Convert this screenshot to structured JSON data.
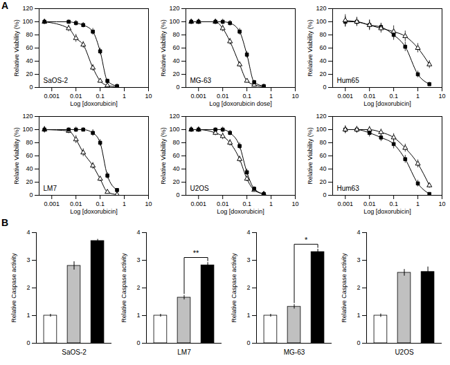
{
  "chart_data": [
    {
      "type": "line",
      "xlabel": "Log [doxorubicin]",
      "ylabel": "Relative Viability (%)",
      "log": "x",
      "xlim": [
        0.0003,
        10
      ],
      "xticks": [
        0.001,
        0.01,
        0.1,
        1,
        10
      ],
      "ylim": [
        0,
        120
      ],
      "yticks": [
        0,
        20,
        40,
        60,
        80,
        100,
        120
      ],
      "grid": false,
      "annotations": [
        "A",
        {
          "text": "SaOS-2"
        }
      ],
      "series": [
        {
          "color": "black",
          "marker": "triangle-open",
          "x": [
            0.0005,
            0.005,
            0.01,
            0.02,
            0.05,
            0.1,
            0.2,
            0.5
          ],
          "values": [
            100,
            90,
            75,
            65,
            30,
            10,
            3,
            1
          ],
          "errors": [
            4,
            5,
            6,
            5,
            5,
            3,
            2,
            1
          ]
        },
        {
          "color": "black",
          "marker": "square",
          "x": [
            0.0005,
            0.005,
            0.01,
            0.02,
            0.05,
            0.1,
            0.2,
            0.5
          ],
          "values": [
            100,
            100,
            98,
            95,
            85,
            55,
            10,
            2
          ],
          "errors": [
            3,
            3,
            4,
            4,
            5,
            5,
            3,
            1
          ]
        }
      ]
    },
    {
      "type": "line",
      "xlabel": "Log [doxorubicin dose]",
      "ylabel": "Relative Viability (%)",
      "log": "x",
      "xlim": [
        0.0003,
        10
      ],
      "xticks": [
        0.001,
        0.01,
        0.1,
        1,
        10
      ],
      "ylim": [
        0,
        120
      ],
      "yticks": [
        0,
        20,
        40,
        60,
        80,
        100,
        120
      ],
      "grid": false,
      "annotations": [
        {
          "text": "MG-63"
        }
      ],
      "series": [
        {
          "color": "black",
          "marker": "triangle-open",
          "x": [
            0.0005,
            0.001,
            0.005,
            0.01,
            0.02,
            0.05,
            0.1,
            0.2,
            0.5
          ],
          "values": [
            100,
            100,
            100,
            90,
            70,
            35,
            10,
            4,
            1
          ],
          "errors": [
            4,
            4,
            4,
            5,
            5,
            4,
            3,
            2,
            1
          ]
        },
        {
          "color": "black",
          "marker": "square",
          "x": [
            0.0005,
            0.001,
            0.005,
            0.01,
            0.02,
            0.05,
            0.1,
            0.2,
            0.5
          ],
          "values": [
            100,
            100,
            100,
            100,
            98,
            85,
            50,
            8,
            2
          ],
          "errors": [
            3,
            3,
            3,
            4,
            4,
            5,
            5,
            3,
            1
          ]
        }
      ]
    },
    {
      "type": "line",
      "xlabel": "Log [doxorubicin]",
      "ylabel": "Relative Viability (%)",
      "log": "x",
      "xlim": [
        0.0003,
        10
      ],
      "xticks": [
        0.001,
        0.01,
        0.1,
        1,
        10
      ],
      "ylim": [
        0,
        120
      ],
      "yticks": [
        0,
        20,
        40,
        60,
        80,
        100,
        120
      ],
      "grid": false,
      "annotations": [
        {
          "text": "Hum65"
        }
      ],
      "series": [
        {
          "color": "black",
          "marker": "square",
          "x": [
            0.001,
            0.003,
            0.01,
            0.03,
            0.1,
            0.3,
            1,
            3
          ],
          "values": [
            100,
            100,
            95,
            92,
            80,
            62,
            20,
            5
          ],
          "errors": [
            8,
            6,
            7,
            6,
            8,
            7,
            5,
            3
          ]
        },
        {
          "color": "black",
          "marker": "triangle-open",
          "x": [
            0.001,
            0.003,
            0.01,
            0.03,
            0.1,
            0.3,
            1,
            3
          ],
          "values": [
            102,
            100,
            95,
            90,
            85,
            78,
            60,
            35
          ],
          "errors": [
            9,
            7,
            8,
            7,
            9,
            8,
            7,
            6
          ]
        }
      ]
    },
    {
      "type": "line",
      "xlabel": "Log [doxorubicin]",
      "ylabel": "Relative Viability (%)",
      "log": "x",
      "xlim": [
        0.0003,
        10
      ],
      "xticks": [
        0.001,
        0.01,
        0.1,
        1,
        10
      ],
      "ylim": [
        0,
        120
      ],
      "yticks": [
        0,
        20,
        40,
        60,
        80,
        100,
        120
      ],
      "grid": false,
      "annotations": [
        {
          "text": "LM7"
        }
      ],
      "series": [
        {
          "color": "black",
          "marker": "triangle-open",
          "x": [
            0.0005,
            0.005,
            0.01,
            0.02,
            0.05,
            0.1,
            0.2,
            0.5
          ],
          "values": [
            100,
            98,
            85,
            65,
            45,
            25,
            5,
            1
          ],
          "errors": [
            5,
            4,
            6,
            6,
            5,
            4,
            2,
            1
          ]
        },
        {
          "color": "black",
          "marker": "square",
          "x": [
            0.0005,
            0.005,
            0.01,
            0.02,
            0.05,
            0.1,
            0.2,
            0.5
          ],
          "values": [
            100,
            100,
            100,
            100,
            95,
            80,
            30,
            8
          ],
          "errors": [
            4,
            3,
            4,
            3,
            5,
            5,
            5,
            2
          ]
        }
      ]
    },
    {
      "type": "line",
      "xlabel": "Log [doxorubicin]",
      "ylabel": "Relative Viability (%)",
      "log": "x",
      "xlim": [
        0.0003,
        10
      ],
      "xticks": [
        0.001,
        0.01,
        0.1,
        1,
        10
      ],
      "ylim": [
        0,
        120
      ],
      "yticks": [
        0,
        20,
        40,
        60,
        80,
        100,
        120
      ],
      "grid": false,
      "annotations": [
        {
          "text": "U2OS"
        }
      ],
      "series": [
        {
          "color": "black",
          "marker": "triangle-open",
          "x": [
            0.0005,
            0.001,
            0.005,
            0.01,
            0.02,
            0.05,
            0.1,
            0.2,
            0.5
          ],
          "values": [
            100,
            100,
            95,
            90,
            80,
            55,
            25,
            8,
            2
          ],
          "errors": [
            4,
            4,
            4,
            5,
            5,
            5,
            4,
            3,
            1
          ]
        },
        {
          "color": "black",
          "marker": "square",
          "x": [
            0.0005,
            0.001,
            0.005,
            0.01,
            0.02,
            0.05,
            0.1,
            0.2,
            0.5
          ],
          "values": [
            100,
            100,
            100,
            100,
            95,
            75,
            35,
            10,
            2
          ],
          "errors": [
            3,
            3,
            3,
            4,
            4,
            5,
            5,
            3,
            1
          ]
        }
      ]
    },
    {
      "type": "line",
      "xlabel": "Log [doxorubicin]",
      "ylabel": "Relative Viability (%)",
      "log": "x",
      "xlim": [
        0.0003,
        10
      ],
      "xticks": [
        0.001,
        0.01,
        0.1,
        1,
        10
      ],
      "ylim": [
        0,
        120
      ],
      "yticks": [
        0,
        20,
        40,
        60,
        80,
        100,
        120
      ],
      "grid": false,
      "annotations": [
        {
          "text": "Hum63"
        }
      ],
      "series": [
        {
          "color": "black",
          "marker": "square",
          "x": [
            0.001,
            0.003,
            0.01,
            0.03,
            0.1,
            0.3,
            1,
            3
          ],
          "values": [
            100,
            100,
            95,
            88,
            78,
            55,
            18,
            2
          ],
          "errors": [
            6,
            5,
            6,
            6,
            7,
            6,
            5,
            2
          ]
        },
        {
          "color": "black",
          "marker": "triangle-open",
          "x": [
            0.001,
            0.003,
            0.01,
            0.03,
            0.1,
            0.3,
            1,
            3
          ],
          "values": [
            100,
            100,
            100,
            96,
            88,
            72,
            48,
            15
          ],
          "errors": [
            5,
            5,
            5,
            5,
            6,
            6,
            6,
            4
          ]
        }
      ]
    },
    {
      "type": "bar",
      "xlabel": "SaOS-2",
      "ylabel": "Relative Caspase activity",
      "categories": [
        null,
        null,
        null
      ],
      "values": [
        1.0,
        2.8,
        3.7
      ],
      "errors": [
        0.05,
        0.15,
        0.06
      ],
      "colors": [
        "white",
        "#c0c0c0",
        "black"
      ],
      "ylim": [
        0,
        4
      ],
      "yticks": [
        0,
        1,
        2,
        3,
        4
      ],
      "grid": false,
      "annotations": [
        "B"
      ]
    },
    {
      "type": "bar",
      "xlabel": "LM7",
      "ylabel": "Relative Caspase activity",
      "categories": [
        null,
        null,
        null
      ],
      "values": [
        1.0,
        1.65,
        2.82
      ],
      "errors": [
        0.05,
        0.08,
        0.1
      ],
      "colors": [
        "white",
        "#c0c0c0",
        "black"
      ],
      "ylim": [
        0,
        4
      ],
      "yticks": [
        0,
        1,
        2,
        3,
        4
      ],
      "grid": false,
      "annotations": [
        {
          "text": "**",
          "between": [
            1,
            2
          ]
        }
      ]
    },
    {
      "type": "bar",
      "xlabel": "MG-63",
      "ylabel": "Relative Caspase activity",
      "categories": [
        null,
        null,
        null
      ],
      "values": [
        1.0,
        1.32,
        3.3
      ],
      "errors": [
        0.05,
        0.08,
        0.1
      ],
      "colors": [
        "white",
        "#c0c0c0",
        "black"
      ],
      "ylim": [
        0,
        4
      ],
      "yticks": [
        0,
        1,
        2,
        3,
        4
      ],
      "grid": false,
      "annotations": [
        {
          "text": "*",
          "between": [
            1,
            2
          ]
        }
      ]
    },
    {
      "type": "bar",
      "xlabel": "U2OS",
      "ylabel": "Relative Caspase activity",
      "categories": [
        null,
        null,
        null
      ],
      "values": [
        1.0,
        2.55,
        2.58
      ],
      "errors": [
        0.06,
        0.12,
        0.18
      ],
      "colors": [
        "white",
        "#c0c0c0",
        "black"
      ],
      "ylim": [
        0,
        4
      ],
      "yticks": [
        0,
        1,
        2,
        3,
        4
      ],
      "grid": false,
      "annotations": []
    }
  ]
}
